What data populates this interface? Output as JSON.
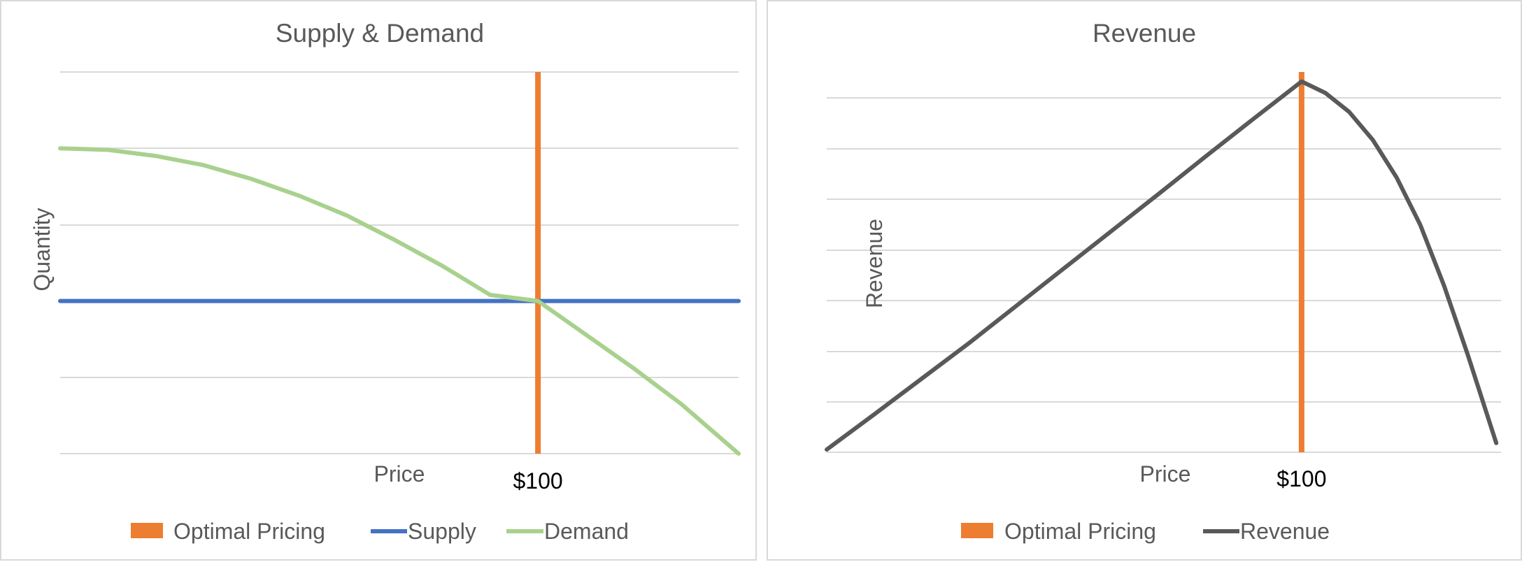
{
  "chart_data": [
    {
      "type": "line",
      "title": "Supply & Demand",
      "xlabel": "Price",
      "ylabel": "Quantity",
      "marker_label": "$100",
      "marker_x": 100,
      "xlim": [
        0,
        142
      ],
      "ylim": [
        0,
        500
      ],
      "grid": true,
      "legend_position": "bottom",
      "series": [
        {
          "name": "Optimal Pricing",
          "kind": "vline",
          "color": "#ED7D31"
        },
        {
          "name": "Supply",
          "color": "#4472C4",
          "x": [
            0,
            142
          ],
          "y": [
            200,
            200
          ]
        },
        {
          "name": "Demand",
          "color": "#A9D18E",
          "x": [
            0,
            10,
            20,
            30,
            40,
            50,
            60,
            70,
            80,
            90,
            100,
            110,
            120,
            130,
            142
          ],
          "y": [
            400,
            398,
            390,
            378,
            360,
            338,
            312,
            280,
            246,
            208,
            200,
            156,
            112,
            65,
            0
          ]
        }
      ]
    },
    {
      "type": "line",
      "title": "Revenue",
      "xlabel": "Price",
      "ylabel": "Revenue",
      "marker_label": "$100",
      "marker_x": 100,
      "xlim": [
        0,
        142
      ],
      "ylim": [
        0,
        700
      ],
      "grid": true,
      "legend_position": "bottom",
      "series": [
        {
          "name": "Optimal Pricing",
          "kind": "vline",
          "color": "#ED7D31"
        },
        {
          "name": "Revenue",
          "color": "#595959",
          "x": [
            0,
            10,
            20,
            30,
            40,
            50,
            60,
            70,
            80,
            90,
            100,
            105,
            110,
            115,
            120,
            125,
            130,
            135,
            141
          ],
          "y": [
            5,
            70,
            136,
            202,
            271,
            340,
            409,
            478,
            548,
            617,
            685,
            664,
            629,
            577,
            508,
            420,
            308,
            180,
            17
          ]
        }
      ]
    }
  ]
}
